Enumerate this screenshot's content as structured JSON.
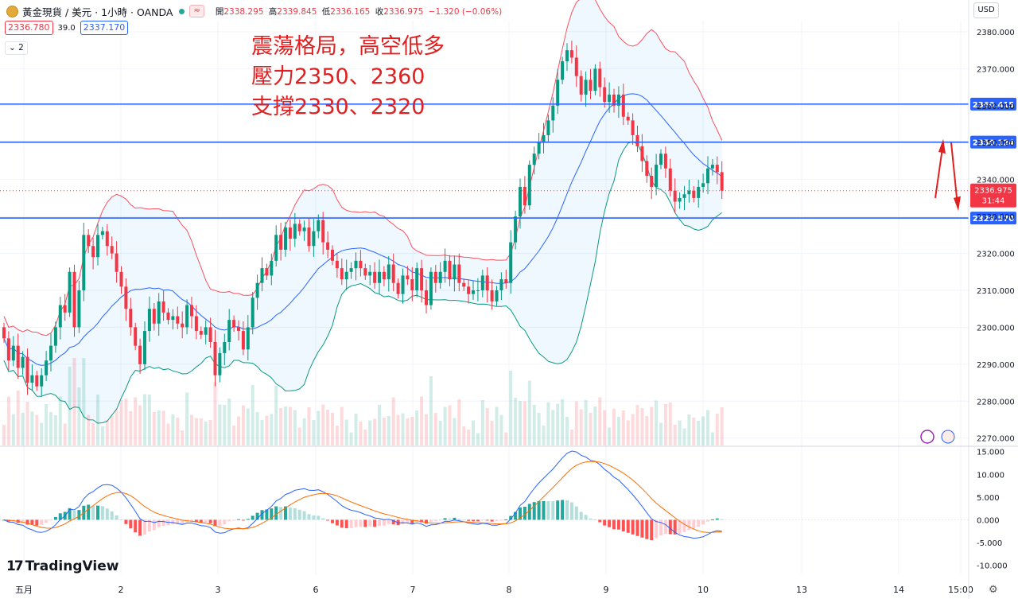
{
  "header": {
    "symbol": "黃金現貨 / 美元 · 1小時 · OANDA",
    "range_badge": "≈",
    "open_label": "開",
    "open": "2338.295",
    "high_label": "高",
    "high": "2339.845",
    "low_label": "低",
    "low": "2336.165",
    "close_label": "收",
    "close": "2336.975",
    "change": "−1.320 (−0.06%)",
    "bid": "2336.780",
    "spread": "39.0",
    "ask": "2337.170",
    "indicator_count": "2"
  },
  "currency": "USD",
  "annotation": [
    "震蕩格局，高空低多",
    "壓力2350、2360",
    "支撐2330、2320"
  ],
  "brand": "TradingView",
  "colors": {
    "up": "#089981",
    "down": "#f23645",
    "level": "#2962ff",
    "annotation": "#e02020"
  },
  "chart_data": [
    {
      "type": "candlestick",
      "y_ticks": [
        "2380.000",
        "2370.000",
        "2360.000",
        "2350.000",
        "2340.000",
        "2330.000",
        "2320.000",
        "2310.000",
        "2300.000",
        "2290.000",
        "2280.000",
        "2270.000"
      ],
      "ylim": [
        2268,
        2383
      ],
      "x_ticks": [
        "五月",
        "2",
        "3",
        "6",
        "7",
        "8",
        "9",
        "10",
        "13",
        "14",
        "15:00"
      ],
      "horizontal_levels": [
        2360.415,
        2350.124,
        2329.57
      ],
      "last_price": 2336.975,
      "countdown": "31:44",
      "series": {
        "close": [
          2297,
          2291,
          2295,
          2289,
          2292,
          2285,
          2287,
          2284,
          2287,
          2291,
          2295,
          2300,
          2306,
          2304,
          2315,
          2300,
          2310,
          2325,
          2322,
          2319,
          2325,
          2326,
          2322,
          2320,
          2315,
          2311,
          2305,
          2300,
          2295,
          2290,
          2299,
          2305,
          2301,
          2307,
          2304,
          2302,
          2303,
          2301,
          2300,
          2306,
          2303,
          2299,
          2298,
          2300,
          2296,
          2287,
          2293,
          2296,
          2302,
          2300,
          2299,
          2294,
          2300,
          2308,
          2312,
          2316,
          2314,
          2318,
          2325,
          2321,
          2327,
          2324,
          2328,
          2326,
          2327,
          2322,
          2326,
          2329,
          2323,
          2321,
          2318,
          2316,
          2313,
          2315,
          2316,
          2318,
          2316,
          2314,
          2315,
          2312,
          2315,
          2313,
          2317,
          2312,
          2309,
          2314,
          2313,
          2310,
          2316,
          2310,
          2306,
          2315,
          2312,
          2315,
          2318,
          2313,
          2317,
          2312,
          2311,
          2309,
          2310,
          2310,
          2314,
          2310,
          2307,
          2310,
          2313,
          2312,
          2323,
          2330,
          2338,
          2333,
          2344,
          2347,
          2350,
          2352,
          2356,
          2360,
          2367,
          2372,
          2375,
          2373,
          2368,
          2363,
          2367,
          2364,
          2370,
          2365,
          2361,
          2363,
          2360,
          2363,
          2357,
          2356,
          2352,
          2349,
          2345,
          2341,
          2338,
          2344,
          2347,
          2343,
          2337,
          2334,
          2335,
          2336,
          2337,
          2335,
          2338,
          2339,
          2343,
          2344,
          2342,
          2337
        ]
      }
    },
    {
      "type": "macd",
      "y_ticks": [
        "15.000",
        "10.000",
        "5.000",
        "0.000",
        "-5.000",
        "-10.000"
      ],
      "ylim": [
        -12,
        16
      ]
    }
  ]
}
